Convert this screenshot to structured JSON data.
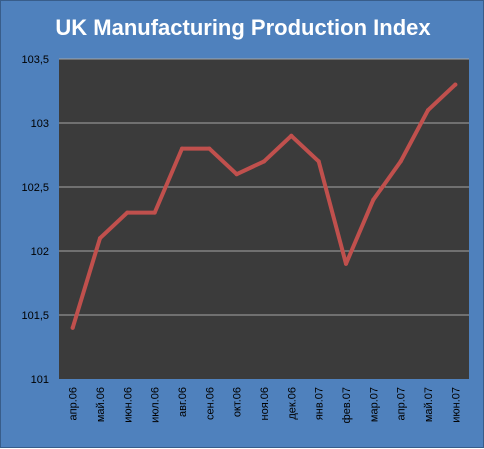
{
  "chart_data": {
    "type": "line",
    "title": "UK Manufacturing Production Index",
    "categories": [
      "апр.06",
      "май.06",
      "июн.06",
      "июл.06",
      "авг.06",
      "сен.06",
      "окт.06",
      "ноя.06",
      "дек.06",
      "янв.07",
      "фев.07",
      "мар.07",
      "апр.07",
      "май.07",
      "июн.07"
    ],
    "series": [
      {
        "values": [
          101.4,
          102.1,
          102.3,
          102.3,
          102.8,
          102.8,
          102.6,
          102.7,
          102.9,
          102.7,
          101.9,
          102.4,
          102.7,
          103.1,
          103.3
        ]
      }
    ],
    "ylim": [
      101,
      103.5
    ],
    "yticks": [
      "101",
      "101,5",
      "102",
      "102,5",
      "103",
      "103,5"
    ],
    "ytick_values": [
      101,
      101.5,
      102,
      102.5,
      103,
      103.5
    ],
    "grid": true,
    "legend": "none",
    "colors": {
      "frame_background": "#4f81bd",
      "plot_background": "#3b3b3b",
      "gridline": "#a6a6a6",
      "line": "#c0504d",
      "title": "#ffffff",
      "tick_text": "#000000"
    }
  }
}
